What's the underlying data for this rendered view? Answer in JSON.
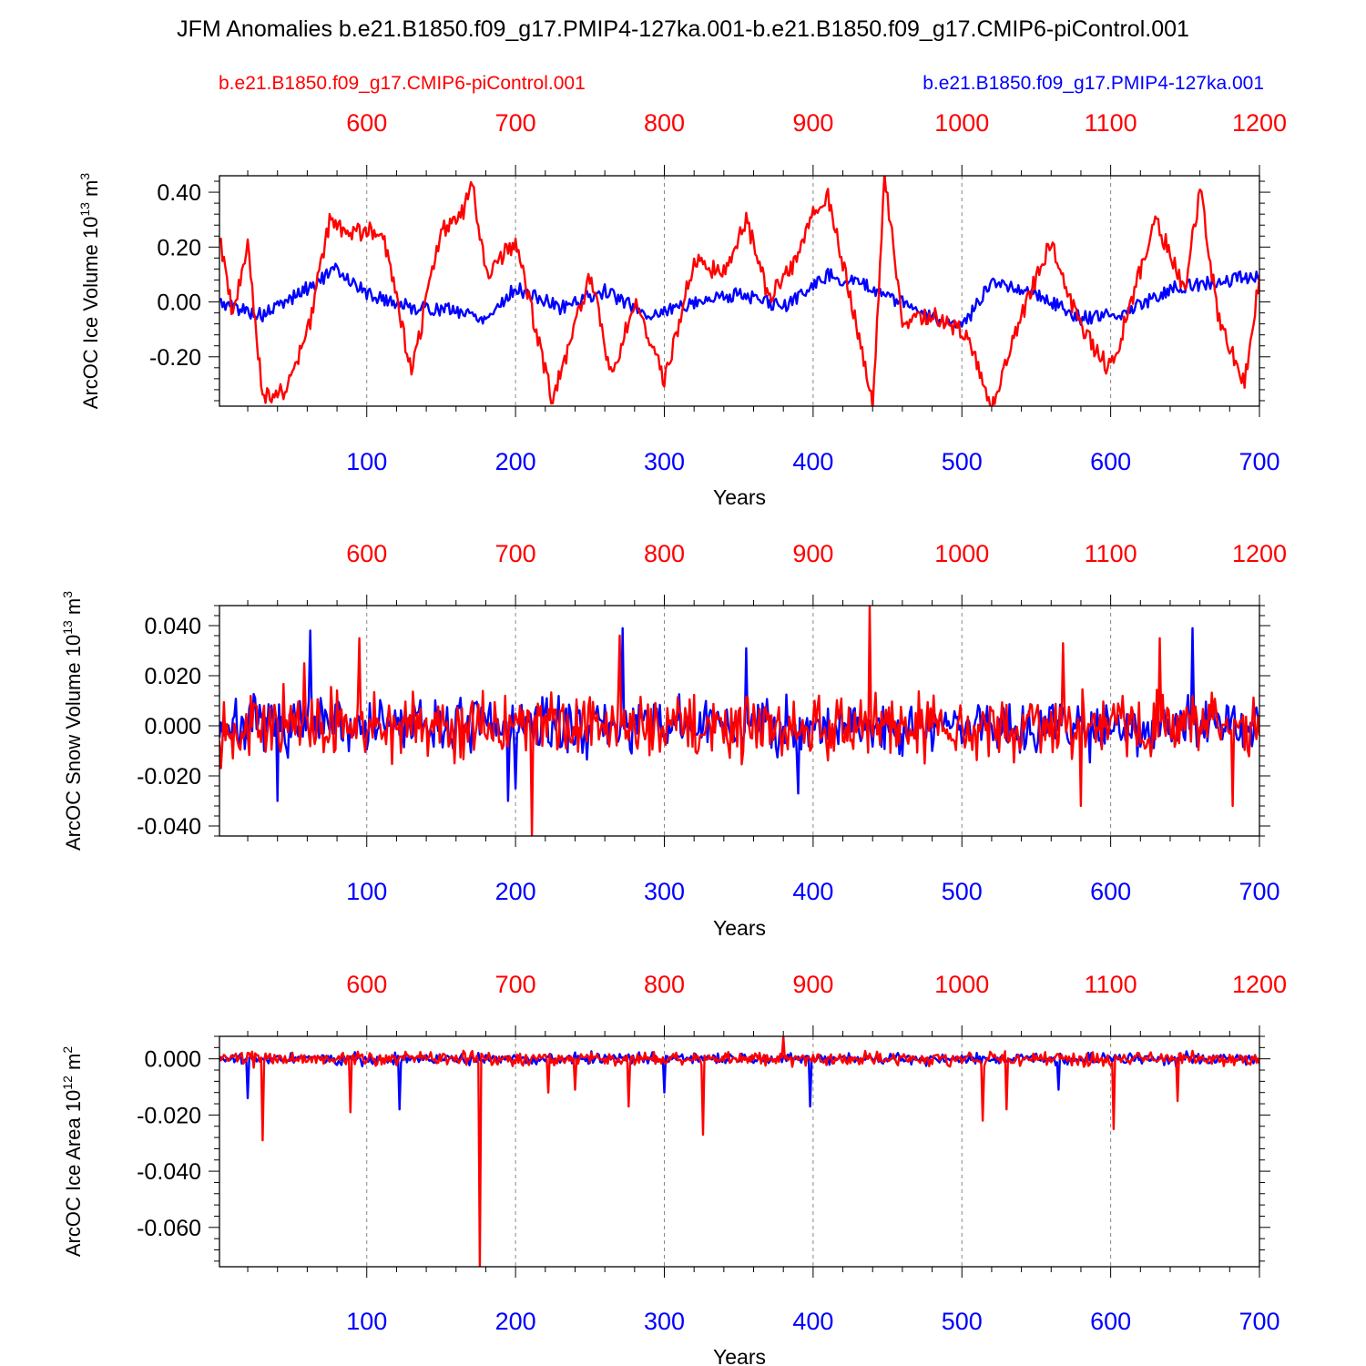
{
  "title": "JFM Anomalies b.e21.B1850.f09_g17.PMIP4-127ka.001-b.e21.B1850.f09_g17.CMIP6-piControl.001",
  "legend": {
    "red_label": "b.e21.B1850.f09_g17.CMIP6-piControl.001",
    "blue_label": "b.e21.B1850.f09_g17.PMIP4-127ka.001"
  },
  "colors": {
    "red": "#ff0000",
    "blue": "#0000ff",
    "grid": "#888888",
    "axis": "#000000"
  },
  "chart_data": [
    {
      "type": "line",
      "name": "ice-volume",
      "ylabel": "ArcOC Ice Volume 10",
      "ylabel_exp": "13",
      "ylabel_unit": " m",
      "ylabel_unit_exp": "3",
      "xlabel": "Years",
      "xlim_bottom": [
        1,
        700
      ],
      "xlim_top": [
        501,
        1200
      ],
      "ylim": [
        -0.38,
        0.46
      ],
      "bottom_ticks": [
        "100",
        "200",
        "300",
        "400",
        "500",
        "600",
        "700"
      ],
      "top_ticks": [
        "600",
        "700",
        "800",
        "900",
        "1000",
        "1100",
        "1200"
      ],
      "yticks": [
        {
          "v": 0.4,
          "label": "0.40"
        },
        {
          "v": 0.2,
          "label": "0.20"
        },
        {
          "v": 0.0,
          "label": "0.00"
        },
        {
          "v": -0.2,
          "label": "-0.20"
        }
      ],
      "series": [
        {
          "name": "b.e21.B1850.f09_g17.PMIP4-127ka.001",
          "color": "blue",
          "x_axis": "bottom",
          "years": [
            0,
            30,
            60,
            80,
            100,
            130,
            160,
            180,
            200,
            230,
            260,
            290,
            320,
            350,
            380,
            410,
            440,
            470,
            500,
            520,
            550,
            580,
            610,
            640,
            670,
            700
          ],
          "values": [
            0.0,
            -0.05,
            0.05,
            0.12,
            0.03,
            -0.02,
            -0.03,
            -0.06,
            0.05,
            -0.02,
            0.04,
            -0.05,
            0.0,
            0.03,
            -0.02,
            0.1,
            0.05,
            -0.03,
            -0.1,
            0.08,
            0.03,
            -0.06,
            -0.04,
            0.05,
            0.07,
            0.1
          ]
        },
        {
          "name": "b.e21.B1850.f09_g17.CMIP6-piControl.001",
          "color": "red",
          "x_axis": "bottom",
          "years": [
            0,
            10,
            20,
            30,
            45,
            60,
            75,
            90,
            110,
            130,
            150,
            165,
            170,
            180,
            200,
            220,
            225,
            250,
            265,
            280,
            300,
            320,
            340,
            355,
            370,
            390,
            400,
            410,
            430,
            440,
            448,
            460,
            480,
            500,
            510,
            520,
            540,
            560,
            580,
            600,
            630,
            650,
            660,
            672,
            690,
            700
          ],
          "values": [
            0.27,
            -0.05,
            0.2,
            -0.34,
            -0.33,
            -0.12,
            0.29,
            0.25,
            0.27,
            -0.26,
            0.26,
            0.33,
            0.46,
            0.1,
            0.22,
            -0.25,
            -0.36,
            0.1,
            -0.28,
            0.01,
            -0.29,
            0.15,
            0.1,
            0.3,
            0.02,
            0.15,
            0.33,
            0.38,
            -0.1,
            -0.38,
            0.46,
            -0.08,
            -0.05,
            -0.1,
            -0.23,
            -0.38,
            -0.05,
            0.22,
            -0.1,
            -0.25,
            0.3,
            0.05,
            0.41,
            -0.05,
            -0.3,
            0.1
          ]
        }
      ]
    },
    {
      "type": "line",
      "name": "snow-volume",
      "ylabel": "ArcOC Snow Volume 10",
      "ylabel_exp": "13",
      "ylabel_unit": " m",
      "ylabel_unit_exp": "3",
      "xlabel": "Years",
      "xlim_bottom": [
        1,
        700
      ],
      "xlim_top": [
        501,
        1200
      ],
      "ylim": [
        -0.044,
        0.048
      ],
      "bottom_ticks": [
        "100",
        "200",
        "300",
        "400",
        "500",
        "600",
        "700"
      ],
      "top_ticks": [
        "600",
        "700",
        "800",
        "900",
        "1000",
        "1100",
        "1200"
      ],
      "yticks": [
        {
          "v": 0.04,
          "label": "0.040"
        },
        {
          "v": 0.02,
          "label": "0.020"
        },
        {
          "v": 0.0,
          "label": "0.000"
        },
        {
          "v": -0.02,
          "label": "-0.020"
        },
        {
          "v": -0.04,
          "label": "-0.040"
        }
      ],
      "series": [
        {
          "name": "b.e21.B1850.f09_g17.PMIP4-127ka.001",
          "color": "blue",
          "x_axis": "bottom",
          "noise_amplitude": 0.016,
          "noise_seed": 7,
          "spikes": [
            [
              62,
              0.038
            ],
            [
              40,
              -0.03
            ],
            [
              195,
              -0.03
            ],
            [
              272,
              0.039
            ],
            [
              355,
              0.031
            ],
            [
              655,
              0.039
            ],
            [
              200,
              -0.025
            ],
            [
              390,
              -0.027
            ]
          ]
        },
        {
          "name": "b.e21.B1850.f09_g17.CMIP6-piControl.001",
          "color": "red",
          "x_axis": "bottom",
          "noise_amplitude": 0.018,
          "noise_seed": 13,
          "spikes": [
            [
              438,
              0.048
            ],
            [
              211,
              -0.044
            ],
            [
              58,
              0.025
            ],
            [
              95,
              0.035
            ],
            [
              270,
              0.036
            ],
            [
              568,
              0.033
            ],
            [
              633,
              0.035
            ],
            [
              580,
              -0.032
            ],
            [
              682,
              -0.032
            ]
          ]
        }
      ]
    },
    {
      "type": "line",
      "name": "ice-area",
      "ylabel": "ArcOC Ice Area 10",
      "ylabel_exp": "12",
      "ylabel_unit": " m",
      "ylabel_unit_exp": "2",
      "xlabel": "Years",
      "xlim_bottom": [
        1,
        700
      ],
      "xlim_top": [
        501,
        1200
      ],
      "ylim": [
        -0.074,
        0.008
      ],
      "bottom_ticks": [
        "100",
        "200",
        "300",
        "400",
        "500",
        "600",
        "700"
      ],
      "top_ticks": [
        "600",
        "700",
        "800",
        "900",
        "1000",
        "1100",
        "1200"
      ],
      "yticks": [
        {
          "v": 0.0,
          "label": "0.000"
        },
        {
          "v": -0.02,
          "label": "-0.020"
        },
        {
          "v": -0.04,
          "label": "-0.040"
        },
        {
          "v": -0.06,
          "label": "-0.060"
        }
      ],
      "series": [
        {
          "name": "b.e21.B1850.f09_g17.PMIP4-127ka.001",
          "color": "blue",
          "x_axis": "bottom",
          "noise_amplitude": 0.003,
          "noise_seed": 21,
          "spikes": [
            [
              20,
              -0.014
            ],
            [
              122,
              -0.018
            ],
            [
              398,
              -0.017
            ],
            [
              300,
              -0.012
            ],
            [
              565,
              -0.011
            ]
          ]
        },
        {
          "name": "b.e21.B1850.f09_g17.CMIP6-piControl.001",
          "color": "red",
          "x_axis": "bottom",
          "noise_amplitude": 0.0035,
          "noise_seed": 33,
          "spikes": [
            [
              30,
              -0.029
            ],
            [
              89,
              -0.019
            ],
            [
              176,
              -0.074
            ],
            [
              222,
              -0.012
            ],
            [
              240,
              -0.011
            ],
            [
              276,
              -0.017
            ],
            [
              326,
              -0.027
            ],
            [
              514,
              -0.022
            ],
            [
              530,
              -0.018
            ],
            [
              602,
              -0.025
            ],
            [
              645,
              -0.015
            ],
            [
              380,
              0.008
            ]
          ]
        }
      ]
    }
  ]
}
